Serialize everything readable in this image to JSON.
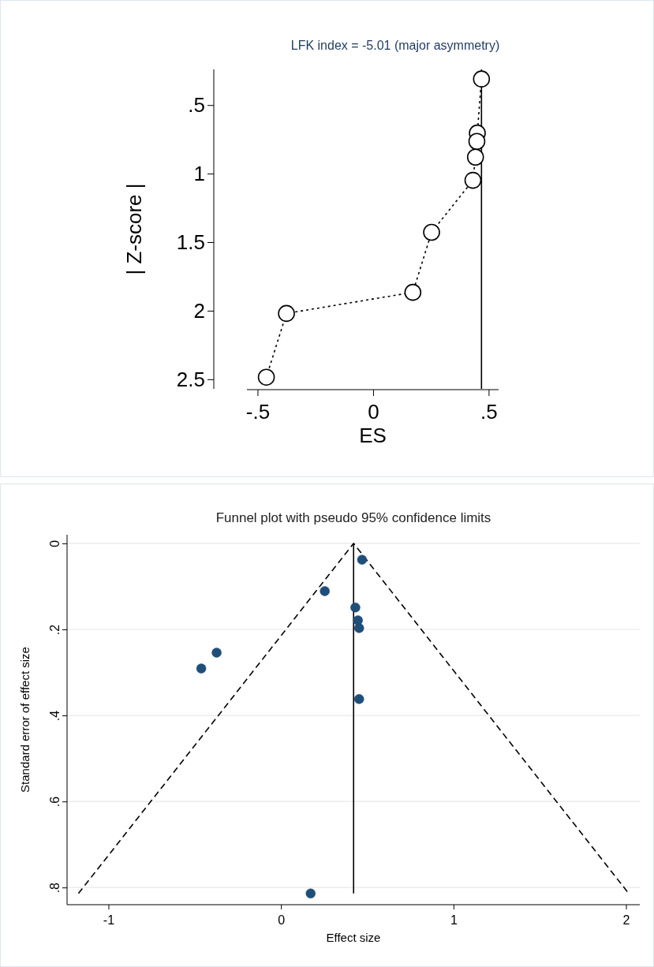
{
  "chart_data": [
    {
      "type": "line",
      "title": "LFK index = -5.01 (major asymmetry)",
      "xlabel": "ES",
      "ylabel": "| Z-score |",
      "xlim": [
        -0.546,
        0.543
      ],
      "ylim": [
        2.57,
        0.24
      ],
      "xticks": [
        {
          "value": -0.5,
          "label": "-.5"
        },
        0,
        {
          "value": 0.5,
          "label": ".5"
        }
      ],
      "yticks": [
        {
          "value": 0.5,
          "label": ".5"
        },
        1,
        1.5,
        2,
        2.5
      ],
      "grid": false,
      "marker": "circle",
      "line_style": "dotted",
      "ref_lines": [
        {
          "axis": "x",
          "value": 0.469,
          "label": null,
          "color": "#000000",
          "line_style": "solid"
        }
      ],
      "series": [
        {
          "color": "#000000",
          "x": [
            0.469,
            0.451,
            0.449,
            0.443,
            0.432,
            0.253,
            0.172,
            -0.375,
            -0.462
          ],
          "values": [
            0.31,
            0.704,
            0.765,
            0.88,
            1.049,
            1.428,
            1.866,
            2.02,
            2.485
          ]
        }
      ]
    },
    {
      "type": "scatter",
      "title": "Funnel plot with pseudo 95% confidence limits",
      "xlabel": "Effect size",
      "ylabel": "Standard error of effect size",
      "xlim": [
        -1.24,
        2.08
      ],
      "ylim": [
        0.84,
        -0.02
      ],
      "xticks": [
        -1,
        0,
        1,
        2
      ],
      "yticks": [
        0,
        {
          "value": 0.2,
          "label": ".2"
        },
        {
          "value": 0.4,
          "label": ".4"
        },
        {
          "value": 0.6,
          "label": ".6"
        },
        {
          "value": 0.8,
          "label": ".8"
        }
      ],
      "grid": "y",
      "series": [
        {
          "color": "#1f4e79",
          "marker": "circle",
          "x": [
            0.47,
            0.254,
            0.431,
            0.446,
            0.453,
            -0.373,
            -0.462,
            0.453,
            0.172
          ],
          "values": [
            0.038,
            0.111,
            0.149,
            0.179,
            0.197,
            0.254,
            0.291,
            0.362,
            0.814
          ]
        },
        {
          "type": "line",
          "color": "#000000",
          "marker": "none",
          "line_style": "dashed",
          "x": [
            -1.174,
            0.421,
            2.016
          ],
          "values": [
            0.814,
            0,
            0.814
          ]
        },
        {
          "type": "line",
          "color": "#000000",
          "marker": "none",
          "line_style": "solid",
          "x": [
            0.421,
            0.421
          ],
          "values": [
            0,
            0.814
          ]
        }
      ]
    }
  ]
}
